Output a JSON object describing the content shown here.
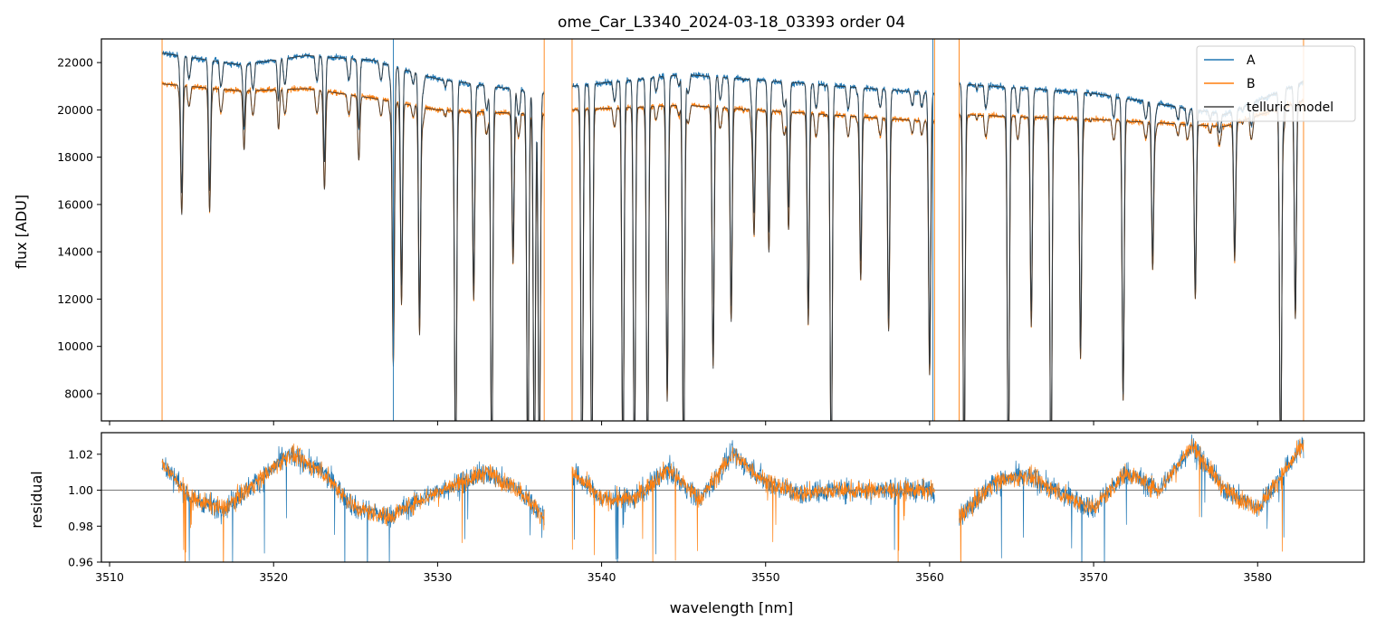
{
  "chart_data": [
    {
      "type": "line",
      "title": "ome_Car_L3340_2024-03-18_03393  order 04",
      "xlabel": "",
      "ylabel": "flux [ADU]",
      "xlim": [
        3509.5,
        3586.5
      ],
      "ylim": [
        6850,
        23000
      ],
      "x_ticks": [
        3510,
        3520,
        3530,
        3540,
        3550,
        3560,
        3570,
        3580
      ],
      "y_ticks": [
        8000,
        10000,
        12000,
        14000,
        16000,
        18000,
        20000,
        22000
      ],
      "y_tick_labels": [
        "8000",
        "10000",
        "12000",
        "14000",
        "16000",
        "18000",
        "20000",
        "22000"
      ],
      "x_range_segments": [
        [
          3513.2,
          3536.5
        ],
        [
          3538.2,
          3560.3
        ],
        [
          3561.8,
          3582.8
        ]
      ],
      "continuum": {
        "A": {
          "x": [
            3513.2,
            3518,
            3522,
            3526,
            3530,
            3536.5,
            3538.2,
            3545,
            3560.3,
            3561.8,
            3570,
            3578,
            3582.8
          ],
          "y": [
            22400,
            21900,
            22300,
            22100,
            21300,
            20700,
            21000,
            21500,
            20700,
            21100,
            20700,
            19800,
            21200
          ]
        },
        "B": {
          "x": [
            3513.2,
            3518,
            3522,
            3526,
            3530,
            3536.5,
            3538.2,
            3545,
            3560.3,
            3561.8,
            3570,
            3578,
            3582.8
          ],
          "y": [
            21100,
            20800,
            20900,
            20500,
            20000,
            19800,
            20000,
            20200,
            19500,
            19800,
            19600,
            19300,
            20400
          ]
        }
      },
      "absorption_lines": [
        {
          "x": 3514.4,
          "depth": 0.26
        },
        {
          "x": 3516.1,
          "depth": 0.25
        },
        {
          "x": 3518.2,
          "depth": 0.12
        },
        {
          "x": 3520.3,
          "depth": 0.08
        },
        {
          "x": 3523.1,
          "depth": 0.2
        },
        {
          "x": 3525.2,
          "depth": 0.12
        },
        {
          "x": 3527.3,
          "depth": 0.55
        },
        {
          "x": 3527.8,
          "depth": 0.42
        },
        {
          "x": 3528.9,
          "depth": 0.48
        },
        {
          "x": 3531.1,
          "depth": 0.8
        },
        {
          "x": 3532.2,
          "depth": 0.4
        },
        {
          "x": 3533.3,
          "depth": 0.8
        },
        {
          "x": 3534.6,
          "depth": 0.32
        },
        {
          "x": 3535.5,
          "depth": 0.8
        },
        {
          "x": 3535.9,
          "depth": 0.8
        },
        {
          "x": 3536.2,
          "depth": 0.8
        },
        {
          "x": 3538.8,
          "depth": 0.8
        },
        {
          "x": 3539.4,
          "depth": 0.8
        },
        {
          "x": 3541.3,
          "depth": 0.8
        },
        {
          "x": 3542.0,
          "depth": 0.8
        },
        {
          "x": 3542.8,
          "depth": 0.8
        },
        {
          "x": 3544.0,
          "depth": 0.62
        },
        {
          "x": 3545.0,
          "depth": 0.8
        },
        {
          "x": 3546.8,
          "depth": 0.55
        },
        {
          "x": 3547.9,
          "depth": 0.45
        },
        {
          "x": 3549.3,
          "depth": 0.25
        },
        {
          "x": 3550.2,
          "depth": 0.3
        },
        {
          "x": 3551.4,
          "depth": 0.25
        },
        {
          "x": 3552.6,
          "depth": 0.45
        },
        {
          "x": 3554.0,
          "depth": 0.8
        },
        {
          "x": 3555.8,
          "depth": 0.35
        },
        {
          "x": 3557.5,
          "depth": 0.45
        },
        {
          "x": 3560.0,
          "depth": 0.55
        },
        {
          "x": 3562.1,
          "depth": 0.8
        },
        {
          "x": 3564.8,
          "depth": 0.8
        },
        {
          "x": 3566.2,
          "depth": 0.45
        },
        {
          "x": 3567.4,
          "depth": 0.8
        },
        {
          "x": 3569.2,
          "depth": 0.5
        },
        {
          "x": 3571.8,
          "depth": 0.6
        },
        {
          "x": 3573.6,
          "depth": 0.32
        },
        {
          "x": 3576.2,
          "depth": 0.38
        },
        {
          "x": 3578.6,
          "depth": 0.3
        },
        {
          "x": 3581.4,
          "depth": 0.8
        },
        {
          "x": 3582.3,
          "depth": 0.45
        }
      ],
      "series": [
        {
          "name": "A",
          "color": "#1f77b4"
        },
        {
          "name": "B",
          "color": "#ff7f0e"
        },
        {
          "name": "telluric model",
          "color": "#222222"
        }
      ],
      "legend_position": "top-right"
    },
    {
      "type": "line",
      "title": "",
      "xlabel": "wavelength [nm]",
      "ylabel": "residual",
      "xlim": [
        3509.5,
        3586.5
      ],
      "ylim": [
        0.96,
        1.032
      ],
      "x_ticks": [
        3510,
        3520,
        3530,
        3540,
        3550,
        3560,
        3570,
        3580
      ],
      "x_tick_labels": [
        "3510",
        "3520",
        "3530",
        "3540",
        "3550",
        "3560",
        "3570",
        "3580"
      ],
      "y_ticks": [
        0.96,
        0.98,
        1.0,
        1.02
      ],
      "y_tick_labels": [
        "0.96",
        "0.98",
        "1.00",
        "1.02"
      ],
      "reference_line": 1.0,
      "trend": {
        "x": [
          3513.2,
          3515,
          3517,
          3519,
          3521,
          3523,
          3525,
          3527,
          3529,
          3531,
          3533,
          3535,
          3536.5,
          3538.2,
          3540,
          3542,
          3544,
          3546,
          3548,
          3550,
          3552,
          3554,
          3556,
          3558,
          3560.3,
          3561.8,
          3564,
          3566,
          3568,
          3570,
          3572,
          3574,
          3576,
          3578,
          3580,
          3582.8
        ],
        "y": [
          1.015,
          0.995,
          0.99,
          1.005,
          1.02,
          1.01,
          0.99,
          0.985,
          0.995,
          1.003,
          1.01,
          1.0,
          0.985,
          1.01,
          0.995,
          0.995,
          1.012,
          0.995,
          1.02,
          1.005,
          0.998,
          1.0,
          1.0,
          1.0,
          1.0,
          0.985,
          1.005,
          1.008,
          0.998,
          0.99,
          1.01,
          1.0,
          1.025,
          1.0,
          0.99,
          1.025
        ]
      },
      "series": [
        {
          "name": "A",
          "color": "#1f77b4"
        },
        {
          "name": "B",
          "color": "#ff7f0e"
        }
      ]
    }
  ]
}
